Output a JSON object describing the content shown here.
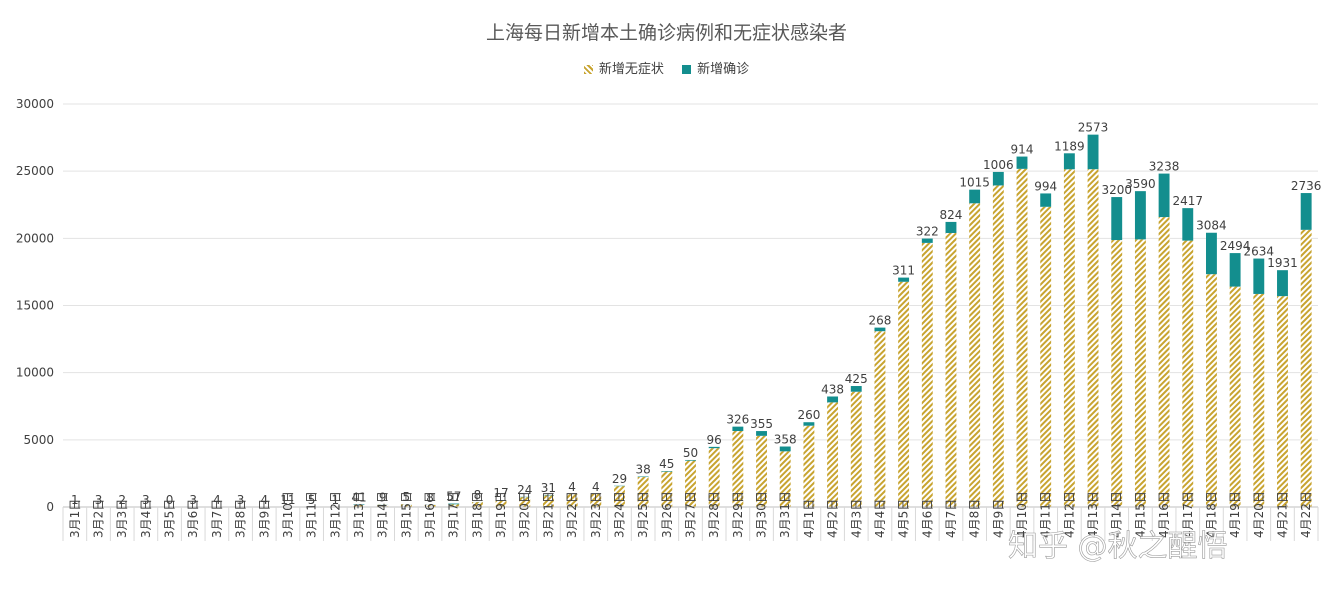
{
  "chart_data": {
    "type": "bar",
    "stacked": true,
    "title": "上海每日新增本土确诊病例和无症状感染者",
    "legend_position": "top-center",
    "grid": true,
    "ylim": [
      0,
      30000
    ],
    "yticks": [
      0,
      5000,
      10000,
      15000,
      20000,
      25000,
      30000
    ],
    "categories": [
      "3月1日",
      "3月2日",
      "3月3日",
      "3月4日",
      "3月5日",
      "3月6日",
      "3月7日",
      "3月8日",
      "3月9日",
      "3月10日",
      "3月11日",
      "3月12日",
      "3月13日",
      "3月14日",
      "3月15日",
      "3月16日",
      "3月17日",
      "3月18日",
      "3月19日",
      "3月20日",
      "3月21日",
      "3月22日",
      "3月23日",
      "3月24日",
      "3月25日",
      "3月26日",
      "3月27日",
      "3月28日",
      "3月29日",
      "3月30日",
      "3月31日",
      "4月1日",
      "4月2日",
      "4月3日",
      "4月4日",
      "4月5日",
      "4月6日",
      "4月7日",
      "4月8日",
      "4月9日",
      "4月10日",
      "4月11日",
      "4月12日",
      "4月13日",
      "4月14日",
      "4月15日",
      "4月16日",
      "4月17日",
      "4月18日",
      "4月19日",
      "4月20日",
      "4月21日",
      "4月22日"
    ],
    "series": [
      {
        "name": "新增无症状",
        "color": "#c8a430",
        "pattern": "hatch",
        "values": [
          1,
          1,
          0,
          1,
          0,
          0,
          0,
          0,
          4,
          1,
          2,
          1,
          150,
          170,
          200,
          150,
          200,
          366,
          492,
          734,
          865,
          951,
          978,
          1552,
          2231,
          2631,
          3450,
          4381,
          5656,
          5298,
          4144,
          6051,
          7788,
          8581,
          13086,
          16766,
          19660,
          20398,
          22609,
          23937,
          25173,
          22348,
          25141,
          25146,
          19872,
          19923,
          21582,
          19831,
          17332,
          16407,
          15861,
          15698,
          20634
        ]
      },
      {
        "name": "新增确诊",
        "color": "#138e8e",
        "values": [
          1,
          3,
          2,
          3,
          0,
          3,
          4,
          3,
          4,
          11,
          5,
          1,
          41,
          9,
          5,
          8,
          57,
          8,
          17,
          24,
          31,
          4,
          4,
          29,
          38,
          45,
          50,
          96,
          326,
          355,
          358,
          260,
          438,
          425,
          268,
          311,
          322,
          824,
          1015,
          1006,
          914,
          994,
          1189,
          2573,
          3200,
          3590,
          3238,
          2417,
          3084,
          2494,
          2634,
          1931,
          2736
        ]
      }
    ],
    "data_labels": [
      "1",
      "3",
      "2",
      "3",
      "0",
      "3",
      "4",
      "3",
      "4",
      "11",
      "5",
      "1",
      "41",
      "9",
      "5",
      "8",
      "57",
      "8",
      "17",
      "24",
      "31",
      "4",
      "4",
      "29",
      "38",
      "45",
      "50",
      "96",
      "326",
      "355",
      "358",
      "260",
      "438",
      "425",
      "268",
      "311",
      "322",
      "824",
      "1015",
      "1006",
      "914",
      "994",
      "1189",
      "2573",
      "3200",
      "3590",
      "3238",
      "2417",
      "3084",
      "2494",
      "2634",
      "1931",
      "2736"
    ]
  },
  "watermark": "知乎 @秋之醒悟"
}
